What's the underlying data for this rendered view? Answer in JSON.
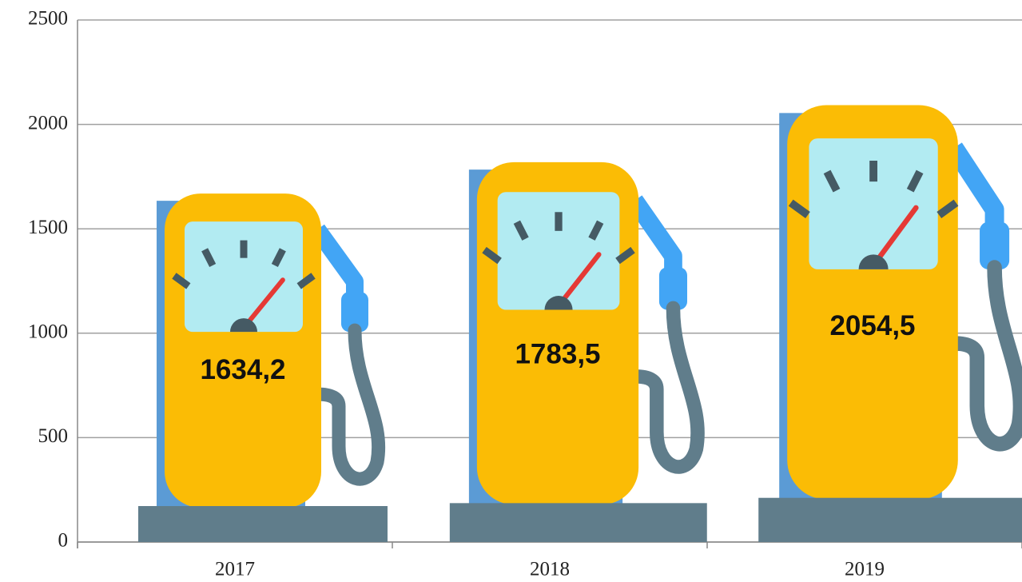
{
  "chart_data": {
    "type": "bar",
    "categories": [
      "2017",
      "2018",
      "2019"
    ],
    "values": [
      1634.2,
      1783.5,
      2054.5
    ],
    "value_labels": [
      "1634,2",
      "1783,5",
      "2054,5"
    ],
    "color": "#5b9bd5",
    "ylim": [
      0,
      2500
    ],
    "yticks": [
      0,
      500,
      1000,
      1500,
      2000,
      2500
    ],
    "grid": true
  }
}
